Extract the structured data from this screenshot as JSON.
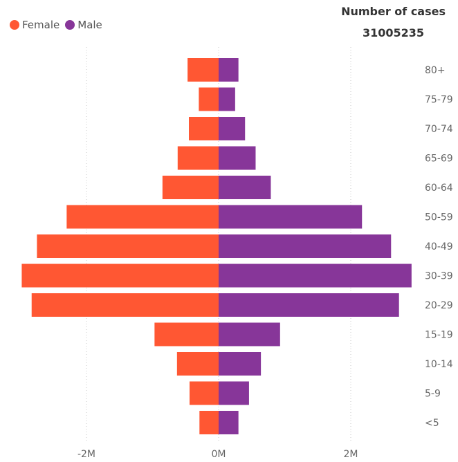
{
  "legend": [
    {
      "name": "Female",
      "color": "#FF5733"
    },
    {
      "name": "Male",
      "color": "#873699"
    }
  ],
  "kpi": {
    "label": "Number of cases",
    "value": "31005235"
  },
  "chart_data": {
    "type": "bar",
    "orientation": "horizontal-diverging",
    "categories": [
      "80+",
      "75-79",
      "70-74",
      "65-69",
      "60-64",
      "50-59",
      "40-49",
      "30-39",
      "20-29",
      "15-19",
      "10-14",
      "5-9",
      "<5"
    ],
    "series": [
      {
        "name": "Female",
        "color": "#FF5733",
        "values": [
          -0.47,
          -0.3,
          -0.45,
          -0.62,
          -0.85,
          -2.3,
          -2.75,
          -2.98,
          -2.83,
          -0.97,
          -0.63,
          -0.44,
          -0.29
        ]
      },
      {
        "name": "Male",
        "color": "#873699",
        "values": [
          0.3,
          0.25,
          0.4,
          0.56,
          0.79,
          2.17,
          2.61,
          2.92,
          2.73,
          0.93,
          0.64,
          0.46,
          0.3
        ]
      }
    ],
    "xunit": "M",
    "xlim": [
      -3.2,
      3.2
    ],
    "xticks": [
      -2,
      0,
      2
    ],
    "xtick_labels": [
      "-2M",
      "0M",
      "2M"
    ],
    "grid": true,
    "legend_position": "top-left"
  }
}
